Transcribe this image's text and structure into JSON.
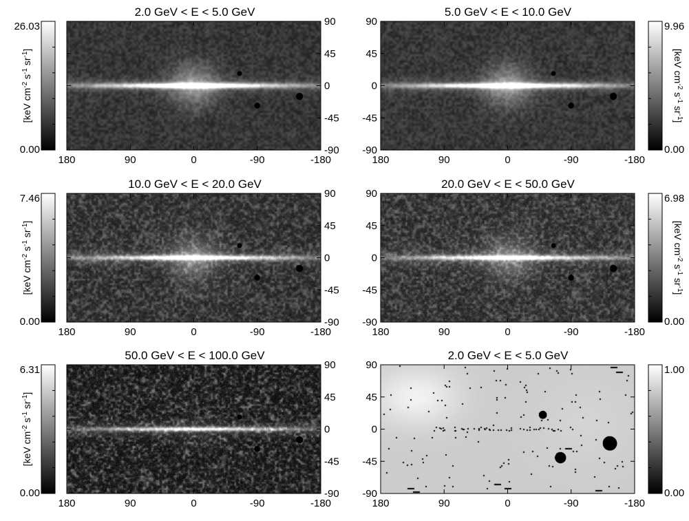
{
  "chart_data": [
    {
      "type": "heatmap",
      "title": "2.0 GeV < E <  5.0 GeV",
      "xlim": [
        180,
        -180
      ],
      "ylim": [
        -90,
        90
      ],
      "xticks": [
        180,
        90,
        0,
        -90,
        -180
      ],
      "yticks": [
        90,
        45,
        0,
        -45,
        -90
      ],
      "colorbar": {
        "min_label": "0.00",
        "max_label": "26.03",
        "min": 0.0,
        "max": 26.03,
        "label": "[keV cm^-2 s^-1 sr^-1]",
        "side": "left"
      },
      "style": "diffuse",
      "plane_width": 0.9,
      "plane_strength": 0.95,
      "bulge": 0.35,
      "noise": 0.25,
      "masks": [
        {
          "l": -150,
          "b": -15,
          "r": 2.2
        },
        {
          "l": -65,
          "b": 17,
          "r": 1.5
        },
        {
          "l": -90,
          "b": -28,
          "r": 1.8
        }
      ]
    },
    {
      "type": "heatmap",
      "title": "5.0 GeV < E <  10.0 GeV",
      "xlim": [
        180,
        -180
      ],
      "ylim": [
        -90,
        90
      ],
      "xticks": [
        180,
        90,
        0,
        -90,
        -180
      ],
      "yticks": [
        90,
        45,
        0,
        -45,
        -90
      ],
      "colorbar": {
        "min_label": "0.00",
        "max_label": "9.96",
        "min": 0.0,
        "max": 9.96,
        "label": "[keV cm^-2 s^-1 sr^-1]",
        "side": "right"
      },
      "style": "diffuse",
      "plane_width": 0.9,
      "plane_strength": 0.9,
      "bulge": 0.35,
      "noise": 0.4,
      "masks": [
        {
          "l": -150,
          "b": -15,
          "r": 2.2
        },
        {
          "l": -65,
          "b": 17,
          "r": 1.5
        },
        {
          "l": -90,
          "b": -28,
          "r": 1.8
        }
      ]
    },
    {
      "type": "heatmap",
      "title": "10.0 GeV < E < 20.0 GeV",
      "xlim": [
        180,
        -180
      ],
      "ylim": [
        -90,
        90
      ],
      "xticks": [
        180,
        90,
        0,
        -90,
        -180
      ],
      "yticks": [
        90,
        45,
        0,
        -45,
        -90
      ],
      "colorbar": {
        "min_label": "0.00",
        "max_label": "7.46",
        "min": 0.0,
        "max": 7.46,
        "label": "[keV cm^-2 s^-1 sr^-1]",
        "side": "left"
      },
      "style": "noisy",
      "plane_width": 0.8,
      "plane_strength": 0.85,
      "bulge": 0.3,
      "noise": 0.55,
      "masks": [
        {
          "l": -150,
          "b": -15,
          "r": 2.2
        },
        {
          "l": -65,
          "b": 17,
          "r": 1.5
        },
        {
          "l": -90,
          "b": -28,
          "r": 1.8
        }
      ]
    },
    {
      "type": "heatmap",
      "title": "20.0 GeV < E <  50.0 GeV",
      "xlim": [
        180,
        -180
      ],
      "ylim": [
        -90,
        90
      ],
      "xticks": [
        180,
        90,
        0,
        -90,
        -180
      ],
      "yticks": [
        90,
        45,
        0,
        -45,
        -90
      ],
      "colorbar": {
        "min_label": "0.00",
        "max_label": "6.98",
        "min": 0.0,
        "max": 6.98,
        "label": "[keV cm^-2 s^-1 sr^-1]",
        "side": "right"
      },
      "style": "noisy",
      "plane_width": 0.8,
      "plane_strength": 0.8,
      "bulge": 0.25,
      "noise": 0.65,
      "masks": [
        {
          "l": -150,
          "b": -15,
          "r": 2.2
        },
        {
          "l": -65,
          "b": 17,
          "r": 1.5
        },
        {
          "l": -90,
          "b": -28,
          "r": 1.8
        }
      ]
    },
    {
      "type": "heatmap",
      "title": "50.0 GeV < E < 100.0 GeV",
      "xlim": [
        180,
        -180
      ],
      "ylim": [
        -90,
        90
      ],
      "xticks": [
        180,
        90,
        0,
        -90,
        -180
      ],
      "yticks": [
        90,
        45,
        0,
        -45,
        -90
      ],
      "colorbar": {
        "min_label": "0.00",
        "max_label": "6.31",
        "min": 0.0,
        "max": 6.31,
        "label": "[keV cm^-2 s^-1 sr^-1]",
        "side": "left"
      },
      "style": "blobs",
      "plane_width": 0.7,
      "plane_strength": 0.75,
      "bulge": 0.1,
      "noise": 0.8,
      "masks": [
        {
          "l": -150,
          "b": -15,
          "r": 2.2
        },
        {
          "l": -65,
          "b": 17,
          "r": 1.5
        },
        {
          "l": -90,
          "b": -28,
          "r": 1.8
        }
      ]
    },
    {
      "type": "heatmap",
      "title": "2.0 GeV < E <  5.0 GeV",
      "xlim": [
        180,
        -180
      ],
      "ylim": [
        -90,
        90
      ],
      "xticks": [
        180,
        90,
        0,
        -90,
        -180
      ],
      "yticks": [
        90,
        45,
        0,
        -45,
        -90
      ],
      "colorbar": {
        "min_label": "0.00",
        "max_label": "1.00",
        "min": 0.0,
        "max": 1.0,
        "label": "",
        "side": "right"
      },
      "style": "mask",
      "masks": [
        {
          "l": -145,
          "b": -20,
          "r": 4.5
        },
        {
          "l": -75,
          "b": -40,
          "r": 3.5
        },
        {
          "l": -50,
          "b": 20,
          "r": 2.5
        }
      ]
    }
  ]
}
